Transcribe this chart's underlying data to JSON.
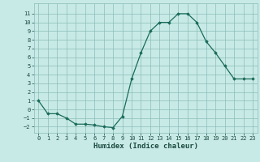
{
  "x": [
    0,
    1,
    2,
    3,
    4,
    5,
    6,
    7,
    8,
    9,
    10,
    11,
    12,
    13,
    14,
    15,
    16,
    17,
    18,
    19,
    20,
    21,
    22,
    23
  ],
  "y": [
    1.0,
    -0.5,
    -0.5,
    -1.0,
    -1.7,
    -1.7,
    -1.8,
    -2.0,
    -2.1,
    -0.8,
    3.5,
    6.5,
    9.0,
    10.0,
    10.0,
    11.0,
    11.0,
    10.0,
    7.8,
    6.5,
    5.0,
    3.5,
    3.5,
    3.5
  ],
  "xlim": [
    -0.5,
    23.5
  ],
  "ylim": [
    -2.7,
    12.2
  ],
  "yticks": [
    -2,
    -1,
    0,
    1,
    2,
    3,
    4,
    5,
    6,
    7,
    8,
    9,
    10,
    11
  ],
  "xticks": [
    0,
    1,
    2,
    3,
    4,
    5,
    6,
    7,
    8,
    9,
    10,
    11,
    12,
    13,
    14,
    15,
    16,
    17,
    18,
    19,
    20,
    21,
    22,
    23
  ],
  "xlabel": "Humidex (Indice chaleur)",
  "line_color": "#1a6b5a",
  "marker": "D",
  "marker_size": 1.8,
  "bg_color": "#c8eae6",
  "grid_color": "#8bbdb8",
  "font_color": "#1a4a40",
  "xlabel_fontsize": 6.5,
  "tick_fontsize": 5.0,
  "linewidth": 0.9
}
